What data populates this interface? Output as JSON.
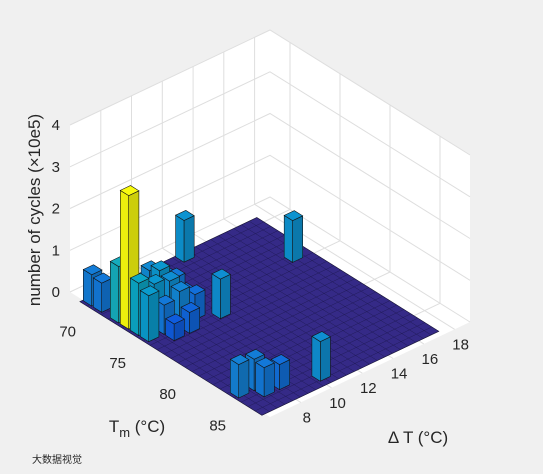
{
  "chart_data": {
    "type": "bar3d",
    "zlabel": "number of cycles (×10e5)",
    "xlabel": "Δ T (°C)",
    "ylabel_base": "T",
    "ylabel_sub": "m",
    "ylabel_unit": " (°C)",
    "watermark": "大数据视觉",
    "x_ticks": [
      8,
      10,
      12,
      14,
      16,
      18
    ],
    "y_ticks": [
      70,
      75,
      80,
      85
    ],
    "z_ticks": [
      0,
      1,
      2,
      3,
      4
    ],
    "xlim": [
      6,
      19
    ],
    "ylim": [
      68,
      88
    ],
    "zlim": [
      0,
      4
    ],
    "grid": true,
    "colormap": [
      "#352a87",
      "#0f5cdd",
      "#1481d6",
      "#06a4ca",
      "#2eb7a4",
      "#87bf77",
      "#d1bb59",
      "#fec832",
      "#f9fb0e"
    ],
    "bars": [
      {
        "dT": 6.3,
        "Tm": 69.8,
        "value": 0.75
      },
      {
        "dT": 6.3,
        "Tm": 70.8,
        "value": 0.7
      },
      {
        "dT": 6.3,
        "Tm": 72.5,
        "value": 1.35
      },
      {
        "dT": 6.3,
        "Tm": 73.5,
        "value": 3.2
      },
      {
        "dT": 6.3,
        "Tm": 74.5,
        "value": 1.25
      },
      {
        "dT": 6.3,
        "Tm": 75.5,
        "value": 1.1
      },
      {
        "dT": 7.3,
        "Tm": 73.5,
        "value": 0.5
      },
      {
        "dT": 7.3,
        "Tm": 74.5,
        "value": 1.05
      },
      {
        "dT": 7.3,
        "Tm": 75.5,
        "value": 0.7
      },
      {
        "dT": 7.3,
        "Tm": 76.5,
        "value": 0.4
      },
      {
        "dT": 8.3,
        "Tm": 72.5,
        "value": 0.9
      },
      {
        "dT": 8.3,
        "Tm": 73.5,
        "value": 1.05
      },
      {
        "dT": 8.3,
        "Tm": 74.5,
        "value": 0.95
      },
      {
        "dT": 8.3,
        "Tm": 75.5,
        "value": 0.85
      },
      {
        "dT": 8.3,
        "Tm": 76.5,
        "value": 0.5
      },
      {
        "dT": 9.3,
        "Tm": 72.5,
        "value": 0.6
      },
      {
        "dT": 9.3,
        "Tm": 73.5,
        "value": 0.7
      },
      {
        "dT": 9.3,
        "Tm": 74.5,
        "value": 0.5
      },
      {
        "dT": 9.3,
        "Tm": 75.5,
        "value": 0.6
      },
      {
        "dT": 10.3,
        "Tm": 76.5,
        "value": 0.95
      },
      {
        "dT": 12.3,
        "Tm": 69.8,
        "value": 1.0
      },
      {
        "dT": 6.3,
        "Tm": 84.5,
        "value": 0.8
      },
      {
        "dT": 7.3,
        "Tm": 84.5,
        "value": 0.75
      },
      {
        "dT": 7.3,
        "Tm": 85.5,
        "value": 0.7
      },
      {
        "dT": 8.3,
        "Tm": 85.5,
        "value": 0.6
      },
      {
        "dT": 10.3,
        "Tm": 86.5,
        "value": 0.95
      },
      {
        "dT": 16.3,
        "Tm": 74.5,
        "value": 1.0
      }
    ]
  }
}
